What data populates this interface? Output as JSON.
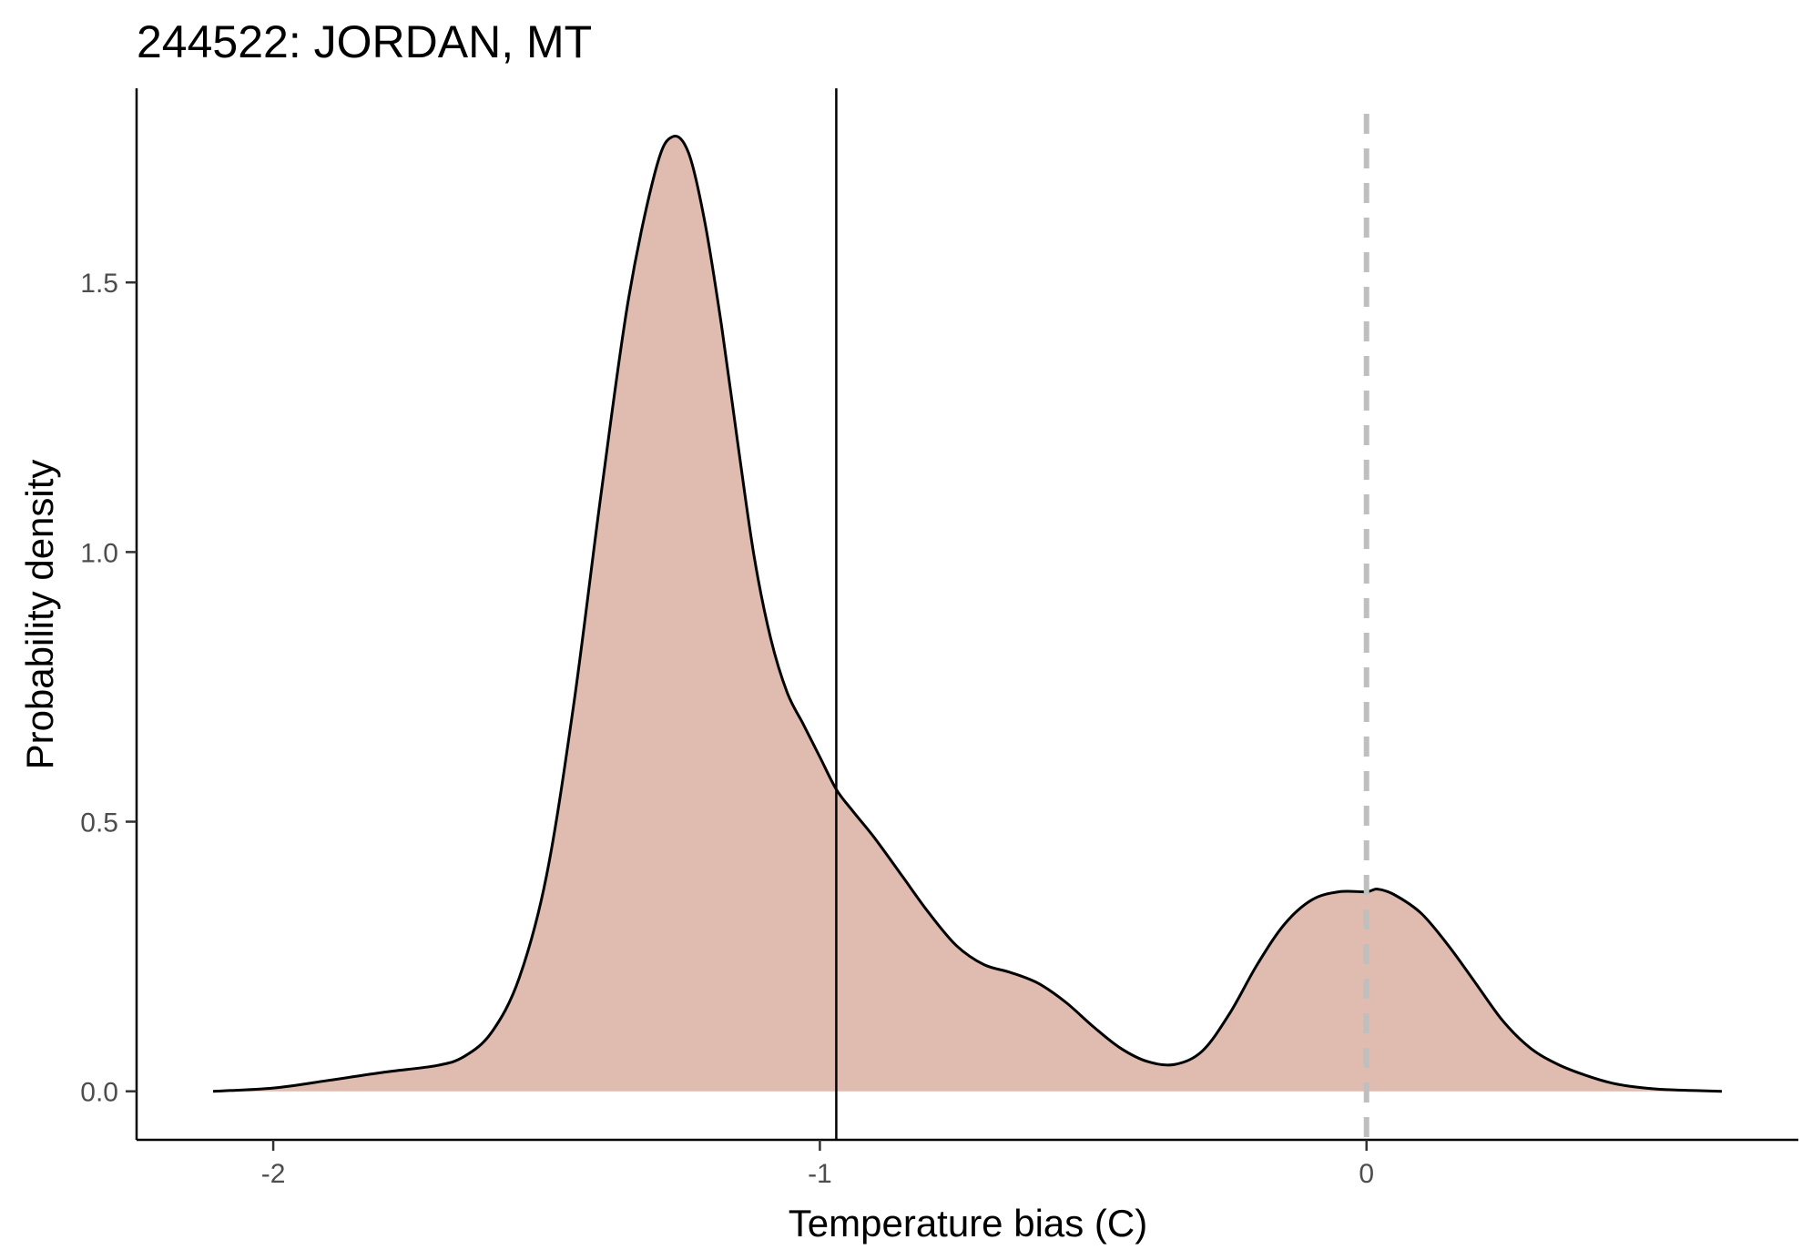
{
  "chart_data": {
    "type": "area",
    "title": "244522: JORDAN, MT",
    "xlabel": "Temperature bias (C)",
    "ylabel": "Probability density",
    "xlim": [
      -2.25,
      0.79
    ],
    "ylim": [
      -0.09,
      1.86
    ],
    "x_ticks": [
      -2,
      -1,
      0
    ],
    "x_tick_labels": [
      "-2",
      "-1",
      "0"
    ],
    "y_ticks": [
      0.0,
      0.5,
      1.0,
      1.5
    ],
    "y_tick_labels": [
      "0.0",
      "0.5",
      "1.0",
      "1.5"
    ],
    "grid": false,
    "legend": "none",
    "fill_color": "#e0bbb0",
    "line_color": "#000000",
    "series": [
      {
        "x": [
          -2.11,
          -2.0,
          -1.9,
          -1.8,
          -1.7,
          -1.65,
          -1.6,
          -1.55,
          -1.5,
          -1.45,
          -1.4,
          -1.35,
          -1.3,
          -1.27,
          -1.24,
          -1.21,
          -1.18,
          -1.15,
          -1.12,
          -1.09,
          -1.06,
          -1.03,
          -1.0,
          -0.97,
          -0.94,
          -0.9,
          -0.85,
          -0.8,
          -0.75,
          -0.7,
          -0.65,
          -0.6,
          -0.55,
          -0.5,
          -0.45,
          -0.4,
          -0.35,
          -0.3,
          -0.25,
          -0.2,
          -0.15,
          -0.1,
          -0.05,
          0.0,
          0.02,
          0.05,
          0.1,
          0.15,
          0.2,
          0.25,
          0.3,
          0.35,
          0.4,
          0.45,
          0.5,
          0.55,
          0.65
        ],
        "values": [
          0.0,
          0.006,
          0.02,
          0.035,
          0.048,
          0.065,
          0.11,
          0.21,
          0.4,
          0.72,
          1.11,
          1.47,
          1.71,
          1.77,
          1.74,
          1.61,
          1.42,
          1.2,
          0.99,
          0.84,
          0.74,
          0.68,
          0.62,
          0.56,
          0.52,
          0.47,
          0.4,
          0.33,
          0.27,
          0.235,
          0.22,
          0.2,
          0.165,
          0.12,
          0.08,
          0.055,
          0.05,
          0.075,
          0.145,
          0.235,
          0.31,
          0.355,
          0.37,
          0.37,
          0.375,
          0.365,
          0.33,
          0.27,
          0.2,
          0.13,
          0.08,
          0.05,
          0.03,
          0.015,
          0.007,
          0.003,
          0.0
        ]
      }
    ],
    "vertical_lines": [
      {
        "x": -0.97,
        "style": "solid",
        "color": "#000000"
      },
      {
        "x": 0.0,
        "style": "dashed",
        "color": "#bfbfbf"
      }
    ]
  }
}
